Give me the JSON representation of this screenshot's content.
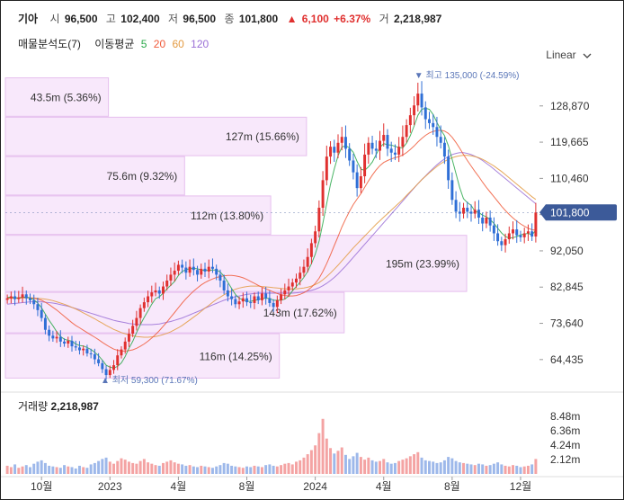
{
  "header": {
    "name": "기아",
    "open_label": "시",
    "open": "96,500",
    "high_label": "고",
    "high": "102,400",
    "low_label": "저",
    "low": "96,500",
    "close_label": "종",
    "close": "101,800",
    "change_arrow": "▲",
    "change": "6,100",
    "change_pct": "+6.37%",
    "volume_label": "거",
    "volume": "2,218,987"
  },
  "indicators": {
    "volume_profile": "매물분석도(7)",
    "ma_label": "이동평균",
    "ma": [
      {
        "label": "5",
        "color": "#2aa84a"
      },
      {
        "label": "20",
        "color": "#f05a3a"
      },
      {
        "label": "60",
        "color": "#e39a40"
      },
      {
        "label": "120",
        "color": "#9a6fd6"
      }
    ]
  },
  "scale_toggle": {
    "label": "Linear",
    "icon": "chevron-down-icon"
  },
  "volume_panel": {
    "label": "거래량",
    "value": "2,218,987"
  },
  "chart_data": {
    "type": "candlestick",
    "y_ticks": [
      128870,
      119665,
      110460,
      101255,
      92050,
      82845,
      73640,
      64435
    ],
    "y_tick_labels": [
      "128,870",
      "119,665",
      "110,460",
      "",
      "92,050",
      "82,845",
      "73,640",
      "64,435"
    ],
    "ylim": [
      58000,
      137500
    ],
    "x_tick_labels": [
      "10월",
      "2023",
      "4월",
      "8월",
      "2024",
      "4월",
      "8월",
      "12월"
    ],
    "x_tick_index": [
      9,
      27,
      45,
      63,
      81,
      99,
      117,
      135
    ],
    "current_price": {
      "value": 101800,
      "label": "101,800"
    },
    "high_marker": {
      "value": 135000,
      "label": "최고",
      "text": "135,000 (-24.59%)",
      "index": 108
    },
    "low_marker": {
      "value": 59300,
      "label": "최저",
      "text": "59,300 (71.67%)",
      "index": 26
    },
    "volume_profile": [
      {
        "label": "43.5m (5.36%)",
        "low": 126000,
        "high": 136000,
        "pct": 5.36
      },
      {
        "label": "127m (15.66%)",
        "low": 116000,
        "high": 126000,
        "pct": 15.66
      },
      {
        "label": "75.6m (9.32%)",
        "low": 106000,
        "high": 116000,
        "pct": 9.32
      },
      {
        "label": "112m (13.80%)",
        "low": 96000,
        "high": 106000,
        "pct": 13.8
      },
      {
        "label": "195m (23.99%)",
        "low": 81500,
        "high": 96000,
        "pct": 23.99
      },
      {
        "label": "143m (17.62%)",
        "low": 71000,
        "high": 81500,
        "pct": 17.62
      },
      {
        "label": "116m (14.25%)",
        "low": 59500,
        "high": 71000,
        "pct": 14.25
      }
    ],
    "close_series": [
      80000,
      80500,
      79800,
      80200,
      81000,
      80000,
      79500,
      78500,
      77000,
      75000,
      72000,
      70500,
      69800,
      70200,
      69000,
      68500,
      69200,
      67800,
      67500,
      66800,
      67200,
      66000,
      65800,
      64500,
      63500,
      62000,
      60500,
      61800,
      63000,
      65500,
      67000,
      69000,
      71000,
      73000,
      75000,
      77500,
      79000,
      80500,
      81500,
      82000,
      81200,
      83000,
      84500,
      86000,
      87000,
      88500,
      87800,
      86500,
      88000,
      87200,
      86000,
      87500,
      86800,
      88000,
      87500,
      86000,
      84500,
      82000,
      80500,
      79800,
      78500,
      79200,
      80000,
      79000,
      78800,
      80500,
      79500,
      81200,
      80000,
      78800,
      77800,
      79500,
      81000,
      82000,
      83000,
      84000,
      85000,
      86500,
      88000,
      90500,
      94000,
      97000,
      103000,
      110000,
      116000,
      118500,
      117000,
      119500,
      121000,
      118000,
      115000,
      112000,
      108000,
      111000,
      116500,
      119500,
      118000,
      117500,
      120000,
      121500,
      118000,
      117000,
      116500,
      118500,
      121000,
      124000,
      126500,
      129000,
      132000,
      128500,
      125500,
      124500,
      123500,
      121000,
      119500,
      116000,
      110000,
      105000,
      102000,
      101500,
      103000,
      102000,
      101500,
      102500,
      100500,
      99000,
      100500,
      98500,
      96500,
      94500,
      93500,
      95000,
      96500,
      97500,
      96000,
      95500,
      96500,
      97000,
      95700,
      101800
    ],
    "ma_5_series": [
      80200,
      80300,
      80100,
      80100,
      80300,
      80300,
      80100,
      79600,
      78800,
      77600,
      76000,
      74400,
      73000,
      71500,
      70300,
      69600,
      69300,
      69100,
      68400,
      68000,
      67900,
      67500,
      67000,
      66300,
      65400,
      64300,
      63000,
      62500,
      62300,
      62700,
      63600,
      65200,
      67300,
      69100,
      71300,
      73300,
      75100,
      76800,
      78500,
      79900,
      80400,
      81300,
      82400,
      83300,
      84300,
      85800,
      86800,
      87300,
      87500,
      87600,
      87500,
      87200,
      87100,
      87100,
      87200,
      87200,
      86700,
      85600,
      84100,
      82500,
      81000,
      80000,
      79600,
      79300,
      79200,
      79500,
      79600,
      80000,
      80000,
      80000,
      79500,
      79500,
      79500,
      79800,
      80600,
      81900,
      83000,
      84100,
      85300,
      86800,
      88800,
      91200,
      94500,
      99100,
      104000,
      108900,
      112900,
      116200,
      118400,
      118800,
      118200,
      117100,
      114800,
      112800,
      112500,
      113400,
      114600,
      116500,
      118300,
      119300,
      119000,
      118900,
      118600,
      118300,
      118200,
      119400,
      121300,
      123800,
      126500,
      128000,
      128300,
      128000,
      126700,
      124700,
      122800,
      121300,
      118800,
      115300,
      111700,
      108100,
      105300,
      104300,
      103600,
      102100,
      101800,
      101100,
      100700,
      100000,
      99000,
      97800,
      96600,
      95700,
      95300,
      95400,
      95700,
      96100,
      96300,
      96500,
      96100,
      97300
    ],
    "ma_20_series": [
      80000,
      80100,
      80100,
      80100,
      80200,
      80200,
      80100,
      80000,
      79800,
      79500,
      79000,
      78400,
      77700,
      77000,
      76200,
      75400,
      74600,
      73800,
      73100,
      72500,
      71900,
      71300,
      70700,
      70100,
      69500,
      68800,
      68200,
      67600,
      67100,
      66800,
      66600,
      66600,
      66700,
      66900,
      67300,
      67800,
      68400,
      69100,
      69900,
      70800,
      71800,
      72900,
      74000,
      75200,
      76400,
      77600,
      78800,
      79900,
      80900,
      81800,
      82600,
      83400,
      84000,
      84500,
      84900,
      85300,
      85500,
      85700,
      85800,
      85800,
      85700,
      85500,
      85200,
      84800,
      84300,
      83800,
      83300,
      82800,
      82400,
      82000,
      81600,
      81200,
      80900,
      80700,
      80600,
      80600,
      80700,
      81000,
      81400,
      82000,
      82800,
      83800,
      85100,
      86800,
      88800,
      91000,
      93400,
      95700,
      98100,
      100200,
      102100,
      103800,
      105200,
      106600,
      108200,
      109800,
      111300,
      112600,
      113700,
      114500,
      115000,
      115400,
      115700,
      116000,
      116400,
      117000,
      117800,
      118700,
      119700,
      120600,
      121400,
      122000,
      122400,
      122600,
      122700,
      122500,
      121900,
      120900,
      119600,
      118100,
      116500,
      115000,
      113600,
      112200,
      110900,
      109500,
      108200,
      107000,
      105800,
      104600,
      103400,
      102300,
      101300,
      100400,
      99600,
      98900,
      98300,
      97800,
      97400,
      97300
    ],
    "ma_60_series": [
      80000,
      80000,
      80000,
      80000,
      80100,
      80100,
      80100,
      80100,
      80000,
      79900,
      79800,
      79600,
      79400,
      79100,
      78800,
      78500,
      78100,
      77700,
      77300,
      76800,
      76300,
      75800,
      75300,
      74800,
      74200,
      73700,
      73100,
      72600,
      72100,
      71700,
      71300,
      71000,
      70700,
      70500,
      70300,
      70200,
      70100,
      70100,
      70200,
      70300,
      70500,
      70800,
      71100,
      71500,
      72000,
      72500,
      73100,
      73800,
      74500,
      75200,
      75900,
      76700,
      77500,
      78200,
      79000,
      79700,
      80300,
      80900,
      81400,
      81900,
      82300,
      82600,
      82800,
      83000,
      83100,
      83100,
      83100,
      83000,
      82900,
      82800,
      82700,
      82600,
      82500,
      82400,
      82400,
      82400,
      82400,
      82500,
      82600,
      82800,
      83100,
      83500,
      84000,
      84700,
      85500,
      86400,
      87400,
      88400,
      89500,
      90600,
      91700,
      92800,
      93800,
      94800,
      95800,
      96800,
      97800,
      98800,
      99700,
      100600,
      101500,
      102400,
      103300,
      104200,
      105100,
      106100,
      107100,
      108100,
      109100,
      110100,
      111000,
      111900,
      112700,
      113500,
      114200,
      114800,
      115300,
      115700,
      116000,
      116200,
      116300,
      116300,
      116200,
      116000,
      115700,
      115300,
      114800,
      114200,
      113600,
      112900,
      112200,
      111400,
      110600,
      109800,
      109000,
      108200,
      107400,
      106600,
      105800,
      105100
    ],
    "ma_120_series": [
      78500,
      78600,
      78700,
      78800,
      78900,
      79000,
      79100,
      79100,
      79100,
      79100,
      79000,
      78900,
      78800,
      78600,
      78400,
      78200,
      78000,
      77700,
      77400,
      77100,
      76800,
      76500,
      76200,
      75900,
      75600,
      75300,
      75000,
      74700,
      74400,
      74200,
      74000,
      73800,
      73600,
      73500,
      73400,
      73300,
      73300,
      73300,
      73300,
      73400,
      73500,
      73700,
      73900,
      74100,
      74400,
      74700,
      75000,
      75400,
      75800,
      76200,
      76600,
      77000,
      77500,
      77900,
      78300,
      78700,
      79100,
      79500,
      79800,
      80100,
      80400,
      80600,
      80800,
      81000,
      81100,
      81200,
      81300,
      81300,
      81300,
      81300,
      81300,
      81300,
      81300,
      81300,
      81300,
      81300,
      81400,
      81500,
      81600,
      81800,
      82000,
      82300,
      82700,
      83200,
      83800,
      84500,
      85300,
      86200,
      87200,
      88200,
      89300,
      90400,
      91500,
      92600,
      93700,
      94800,
      95900,
      97000,
      98100,
      99200,
      100300,
      101400,
      102500,
      103600,
      104700,
      105800,
      106900,
      108000,
      109100,
      110100,
      111100,
      112100,
      113000,
      113900,
      114700,
      115400,
      116000,
      116500,
      116800,
      117000,
      117000,
      116800,
      116500,
      116100,
      115600,
      115000,
      114300,
      113600,
      112800,
      112000,
      111200,
      110400,
      109600,
      108800,
      108000,
      107200,
      106400,
      105600,
      104800,
      104000
    ],
    "volume_series": [
      1.2,
      1.0,
      1.4,
      0.9,
      1.1,
      1.3,
      1.0,
      1.5,
      1.8,
      2.0,
      1.6,
      1.2,
      1.1,
      1.0,
      0.9,
      1.3,
      1.1,
      1.0,
      0.8,
      1.2,
      1.0,
      0.9,
      1.4,
      1.6,
      1.9,
      2.2,
      2.4,
      1.8,
      1.5,
      1.9,
      2.3,
      2.1,
      1.8,
      1.6,
      1.5,
      1.9,
      2.2,
      1.7,
      1.5,
      1.3,
      1.2,
      1.6,
      1.8,
      2.0,
      1.7,
      1.5,
      1.4,
      1.2,
      1.3,
      1.1,
      1.0,
      1.2,
      1.1,
      1.0,
      0.9,
      1.1,
      1.3,
      1.6,
      1.5,
      1.2,
      1.1,
      1.0,
      0.9,
      1.1,
      1.0,
      1.2,
      1.1,
      1.0,
      1.3,
      1.4,
      1.2,
      1.1,
      1.3,
      1.5,
      1.6,
      1.4,
      1.8,
      2.0,
      2.4,
      2.9,
      3.5,
      4.2,
      6.0,
      8.1,
      5.2,
      3.8,
      3.0,
      3.4,
      3.9,
      2.8,
      2.2,
      2.6,
      3.1,
      2.5,
      2.1,
      2.4,
      2.0,
      1.8,
      1.9,
      2.2,
      1.7,
      1.5,
      1.6,
      1.9,
      2.1,
      2.3,
      2.6,
      2.9,
      3.2,
      2.4,
      2.0,
      1.9,
      1.8,
      1.6,
      1.7,
      2.0,
      2.5,
      2.3,
      1.9,
      1.7,
      1.6,
      1.5,
      1.4,
      1.3,
      1.5,
      1.4,
      1.2,
      1.3,
      1.5,
      1.7,
      1.4,
      1.2,
      1.1,
      1.3,
      1.2,
      1.0,
      1.1,
      1.2,
      1.4,
      2.2
    ],
    "vol_ticks": [
      8.48,
      6.36,
      4.24,
      2.12
    ],
    "vol_tick_labels": [
      "8.48m",
      "6.36m",
      "4.24m",
      "2.12m"
    ],
    "colors": {
      "up": "#e0302f",
      "down": "#2f6fd6",
      "profile_fill": "#f8e8fb",
      "profile_stroke": "#e6bfee",
      "price_tag": "#3c5a99",
      "marker": "#5a76b8",
      "vol_up": "#f4a3a3",
      "vol_down": "#9db8ea"
    }
  }
}
